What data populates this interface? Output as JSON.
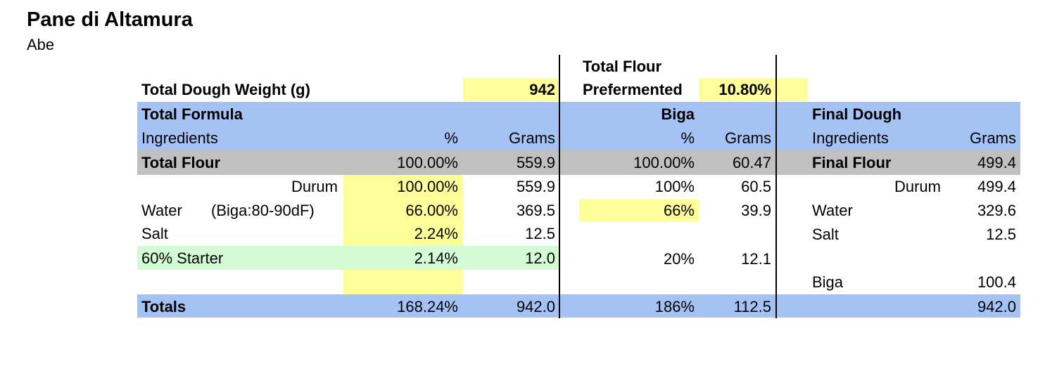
{
  "colors": {
    "blue": "#a4c2f4",
    "gray": "#c0c0c0",
    "yellow": "#ffff99",
    "green": "#d4fcd4"
  },
  "title": "Pane di Altamura",
  "author": "Abe",
  "top": {
    "dough_weight_label": "Total Dough Weight (g)",
    "dough_weight": "942",
    "tfp_label_line1": "Total Flour",
    "tfp_label_line2": "Prefermented",
    "tfp_value": "10.80%"
  },
  "headers": {
    "total_formula": "Total Formula",
    "biga": "Biga",
    "final_dough": "Final Dough",
    "tf_ingredients": "Ingredients",
    "tf_pct": "%",
    "tf_grams": "Grams",
    "biga_pct": "%",
    "biga_grams": "Grams",
    "fd_ingredients": "Ingredients",
    "fd_grams": "Grams"
  },
  "rows": {
    "flour": {
      "label": "Total Flour",
      "pct": "100.00%",
      "grams": "559.9",
      "biga_pct": "100.00%",
      "biga_grams": "60.47",
      "fd_label": "Final Flour",
      "fd_grams": "499.4"
    },
    "durum": {
      "label": "Durum",
      "pct": "100.00%",
      "grams": "559.9",
      "biga_pct": "100%",
      "biga_grams": "60.5",
      "fd_label": "Durum",
      "fd_grams": "499.4"
    },
    "water": {
      "label": "Water",
      "note": "(Biga:80-90dF)",
      "pct": "66.00%",
      "grams": "369.5",
      "biga_pct": "66%",
      "biga_grams": "39.9",
      "fd_label": "Water",
      "fd_grams": "329.6"
    },
    "salt": {
      "label": "Salt",
      "pct": "2.24%",
      "grams": "12.5",
      "fd_label": "Salt",
      "fd_grams": "12.5"
    },
    "starter": {
      "label": "60% Starter",
      "pct": "2.14%",
      "grams": "12.0",
      "biga_pct": "20%",
      "biga_grams": "12.1"
    },
    "biga": {
      "fd_label": "Biga",
      "fd_grams": "100.4"
    },
    "totals": {
      "label": "Totals",
      "pct": "168.24%",
      "grams": "942.0",
      "biga_pct": "186%",
      "biga_grams": "112.5",
      "fd_grams": "942.0"
    }
  }
}
